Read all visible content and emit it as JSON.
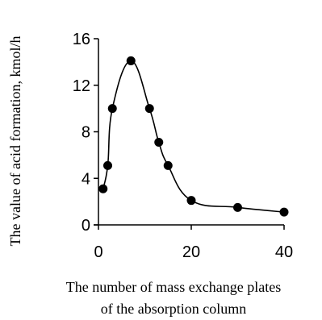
{
  "chart_data": {
    "type": "line",
    "title": "",
    "xlabel_line1": "The number of mass exchange plates",
    "xlabel_line2": "of the absorption column",
    "ylabel": "The value of acid formation, kmol/h",
    "xlim": [
      0,
      40
    ],
    "ylim": [
      0,
      16
    ],
    "x_ticks": [
      0,
      20,
      40
    ],
    "y_ticks": [
      0,
      4,
      8,
      12,
      16
    ],
    "grid": false,
    "legend": "none",
    "marker": "filled-circle",
    "smooth": true,
    "series": [
      {
        "x": [
          1,
          2,
          3,
          7,
          11,
          13,
          15,
          20,
          30,
          40
        ],
        "y": [
          3.1,
          5.1,
          10,
          14.1,
          10,
          7.1,
          5.1,
          2.1,
          1.5,
          1.1
        ]
      }
    ],
    "colors": {
      "line": "#000000",
      "marker": "#000000",
      "axis": "#000000"
    }
  }
}
